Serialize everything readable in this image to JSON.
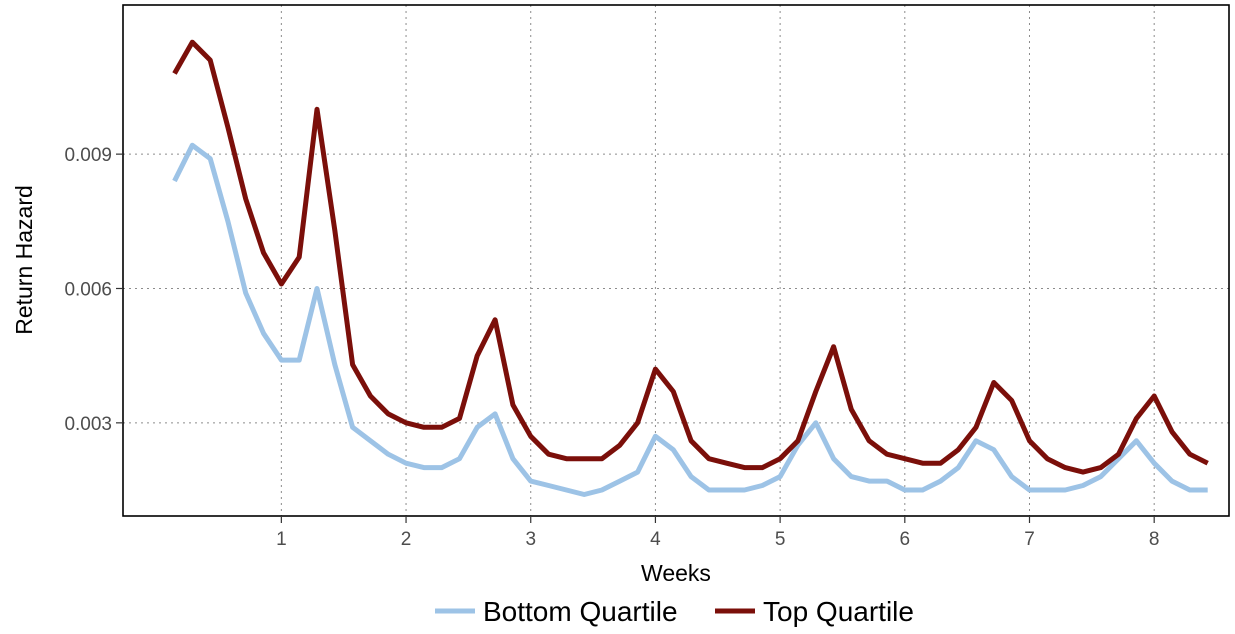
{
  "chart_data": {
    "type": "line",
    "xlabel": "Weeks",
    "ylabel": "Return Hazard",
    "x_ticks": [
      1,
      2,
      3,
      4,
      5,
      6,
      7,
      8
    ],
    "x_tick_labels": [
      "1",
      "2",
      "3",
      "4",
      "5",
      "6",
      "7",
      "8"
    ],
    "y_ticks": [
      0.003,
      0.006,
      0.009
    ],
    "y_tick_labels": [
      "0.003",
      "0.006",
      "0.009"
    ],
    "xlim": [
      -0.27,
      8.6
    ],
    "ylim": [
      0.00092,
      0.01233
    ],
    "grid": "dotted major gridlines",
    "legend_position": "bottom",
    "x": [
      0.143,
      0.286,
      0.429,
      0.571,
      0.714,
      0.857,
      1.0,
      1.143,
      1.286,
      1.429,
      1.571,
      1.714,
      1.857,
      2.0,
      2.143,
      2.286,
      2.429,
      2.571,
      2.714,
      2.857,
      3.0,
      3.143,
      3.286,
      3.429,
      3.571,
      3.714,
      3.857,
      4.0,
      4.143,
      4.286,
      4.429,
      4.571,
      4.714,
      4.857,
      5.0,
      5.143,
      5.286,
      5.429,
      5.571,
      5.714,
      5.857,
      6.0,
      6.143,
      6.286,
      6.429,
      6.571,
      6.714,
      6.857,
      7.0,
      7.143,
      7.286,
      7.429,
      7.571,
      7.714,
      7.857,
      8.0,
      8.143,
      8.286,
      8.429
    ],
    "series": [
      {
        "name": "Bottom Quartile",
        "color": "#9dc3e6",
        "values": [
          0.0084,
          0.0092,
          0.0089,
          0.0075,
          0.0059,
          0.005,
          0.0044,
          0.0044,
          0.006,
          0.0043,
          0.0029,
          0.0026,
          0.0023,
          0.0021,
          0.002,
          0.002,
          0.0022,
          0.0029,
          0.0032,
          0.0022,
          0.0017,
          0.0016,
          0.0015,
          0.0014,
          0.0015,
          0.0017,
          0.0019,
          0.0027,
          0.0024,
          0.0018,
          0.0015,
          0.0015,
          0.0015,
          0.0016,
          0.0018,
          0.0025,
          0.003,
          0.0022,
          0.0018,
          0.0017,
          0.0017,
          0.0015,
          0.0015,
          0.0017,
          0.002,
          0.0026,
          0.0024,
          0.0018,
          0.0015,
          0.0015,
          0.0015,
          0.0016,
          0.0018,
          0.0022,
          0.0026,
          0.0021,
          0.0017,
          0.0015,
          0.0015
        ]
      },
      {
        "name": "Top Quartile",
        "color": "#7b0f0a",
        "values": [
          0.0108,
          0.0115,
          0.0111,
          0.0096,
          0.008,
          0.0068,
          0.0061,
          0.0067,
          0.01,
          0.0073,
          0.0043,
          0.0036,
          0.0032,
          0.003,
          0.0029,
          0.0029,
          0.0031,
          0.0045,
          0.0053,
          0.0034,
          0.0027,
          0.0023,
          0.0022,
          0.0022,
          0.0022,
          0.0025,
          0.003,
          0.0042,
          0.0037,
          0.0026,
          0.0022,
          0.0021,
          0.002,
          0.002,
          0.0022,
          0.0026,
          0.0037,
          0.0047,
          0.0033,
          0.0026,
          0.0023,
          0.0022,
          0.0021,
          0.0021,
          0.0024,
          0.0029,
          0.0039,
          0.0035,
          0.0026,
          0.0022,
          0.002,
          0.0019,
          0.002,
          0.0023,
          0.0031,
          0.0036,
          0.0028,
          0.0023,
          0.0021
        ]
      }
    ]
  }
}
